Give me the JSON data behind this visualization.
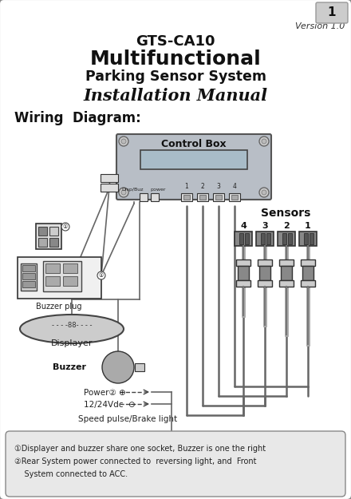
{
  "title_line1": "GTS-CA10",
  "title_line2": "Multifunctional",
  "title_line3": "Parking Sensor System",
  "title_line4": "Installation Manual",
  "wiring_label": "Wiring  Diagram:",
  "version_text": "Version 1.0",
  "page_num": "1",
  "control_box_label": "Control Box",
  "sensors_label": "Sensors",
  "sensor_nums": [
    "4",
    "3",
    "2",
    "1"
  ],
  "port_nums": [
    "1",
    "2",
    "3",
    "4"
  ],
  "buzzer_plug_label": "Buzzer plug",
  "displayer_label": "Displayer",
  "buzzer_label": "Buzzer",
  "power_text1": "Power② ⊕",
  "power_text2": "12/24Vdc  ⊖",
  "speed_label": "Speed pulse/Brake light",
  "note1": "①Displayer and buzzer share one socket, Buzzer is one the right",
  "note2": "②Rear System power connected to  reversing light, and  Front",
  "note3": "    System connected to ACC.",
  "bg_color": "#ffffff",
  "border_color": "#888888",
  "box_fill": "#b8bec6",
  "box_border": "#555555",
  "note_bg": "#e8e8e8",
  "wire_color": "#666666",
  "dark": "#222222"
}
